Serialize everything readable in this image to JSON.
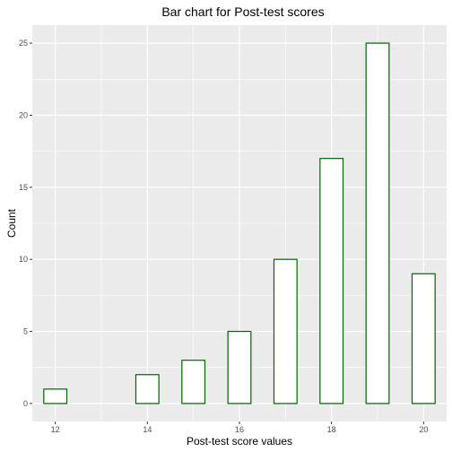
{
  "chart_data": {
    "type": "bar",
    "title": "Bar chart for Post-test scores",
    "xlabel": "Post-test score values",
    "ylabel": "Count",
    "x": [
      12,
      14,
      15,
      16,
      17,
      18,
      19,
      20
    ],
    "values": [
      1,
      2,
      3,
      5,
      10,
      17,
      25,
      9
    ],
    "xlim": [
      11.5,
      20.5
    ],
    "ylim": [
      -1.25,
      26.25
    ],
    "x_ticks": [
      12,
      14,
      16,
      18,
      20
    ],
    "y_ticks": [
      0,
      5,
      10,
      15,
      20,
      25
    ],
    "bar_width": 0.5,
    "grid": true,
    "colors": {
      "panel": "#ebebeb",
      "grid": "#ffffff",
      "bar_fill": "#ffffff",
      "bar_outline": "#006400",
      "tick_text": "#4d4d4d"
    }
  }
}
